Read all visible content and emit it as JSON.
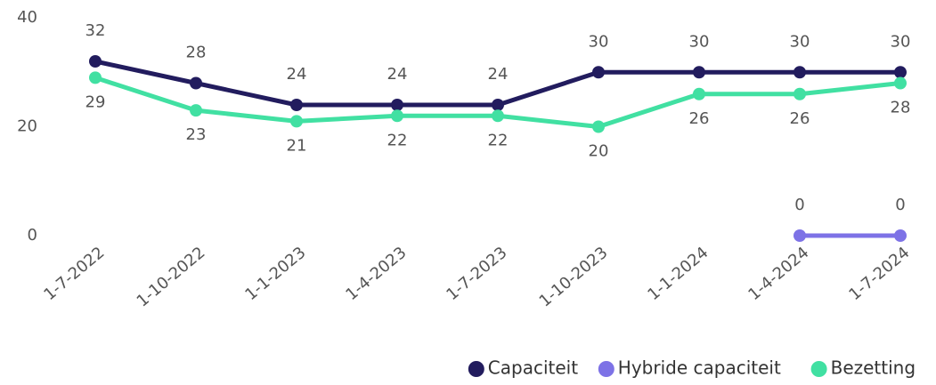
{
  "chart_data": {
    "type": "line",
    "categories": [
      "1-7-2022",
      "1-10-2022",
      "1-1-2023",
      "1-4-2023",
      "1-7-2023",
      "1-10-2023",
      "1-1-2024",
      "1-4-2024",
      "1-7-2024"
    ],
    "series": [
      {
        "name": "Capaciteit",
        "color": "#221c5e",
        "values": [
          32,
          28,
          24,
          24,
          24,
          30,
          30,
          30,
          30
        ]
      },
      {
        "name": "Hybride capaciteit",
        "color": "#7d72e6",
        "values": [
          null,
          null,
          null,
          null,
          null,
          null,
          null,
          0,
          0
        ]
      },
      {
        "name": "Bezetting",
        "color": "#41e0a2",
        "values": [
          29,
          23,
          21,
          22,
          22,
          20,
          26,
          26,
          28
        ]
      }
    ],
    "ylim": [
      0,
      40
    ],
    "yticks": [
      0,
      20,
      40
    ],
    "legend": "bottom-right"
  }
}
